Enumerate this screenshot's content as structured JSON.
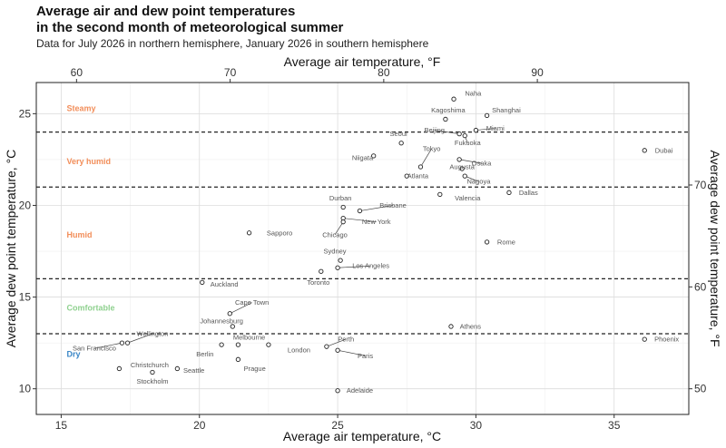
{
  "title_line1": "Average air and dew point temperatures",
  "title_line2": "in the second month of meteorological summer",
  "subtitle": "Data for July 2026 in northern hemisphere, January 2026 in southern hemisphere",
  "chart_data": {
    "type": "scatter",
    "xlabel_bottom": "Average air temperature, °C",
    "xlabel_top": "Average air temperature, °F",
    "ylabel_left": "Average dew point temperature, °C",
    "ylabel_right": "Average dew point temperature, °F",
    "xlim": [
      14.1,
      37.7
    ],
    "ylim": [
      8.6,
      26.7
    ],
    "x_ticks_c": [
      15,
      20,
      25,
      30,
      35
    ],
    "y_ticks_c": [
      10,
      15,
      20,
      25
    ],
    "x_ticks_f": [
      60,
      70,
      80,
      90
    ],
    "y_ticks_f": [
      50,
      60,
      70
    ],
    "thresholds": [
      13,
      16,
      21,
      24
    ],
    "bands": [
      {
        "label": "Steamy",
        "y": 25.3,
        "color": "#f28e5a"
      },
      {
        "label": "Very humid",
        "y": 22.4,
        "color": "#f28e5a"
      },
      {
        "label": "Humid",
        "y": 18.4,
        "color": "#f28e5a"
      },
      {
        "label": "Comfortable",
        "y": 14.4,
        "color": "#8fd18f"
      },
      {
        "label": "Dry",
        "y": 11.9,
        "color": "#3a86c6"
      }
    ],
    "points": [
      {
        "city": "Naha",
        "x": 29.2,
        "y": 25.8,
        "lx": 29.9,
        "ly": 26.1
      },
      {
        "city": "Shanghai",
        "x": 30.4,
        "y": 24.9,
        "lx": 31.1,
        "ly": 25.2
      },
      {
        "city": "Kagoshima",
        "x": 28.9,
        "y": 24.7,
        "lx": 29.0,
        "ly": 25.2
      },
      {
        "city": "Miami",
        "x": 30.0,
        "y": 24.1,
        "lx": 30.7,
        "ly": 24.2,
        "leader": true
      },
      {
        "city": "Beijing",
        "x": 29.4,
        "y": 23.9,
        "lx": 28.5,
        "ly": 24.1,
        "leader": true
      },
      {
        "city": "Seoul",
        "x": 27.3,
        "y": 23.4,
        "lx": 27.2,
        "ly": 23.9
      },
      {
        "city": "Fukuoka",
        "x": 29.6,
        "y": 23.8,
        "lx": 29.7,
        "ly": 23.4,
        "leader": true
      },
      {
        "city": "Dubai",
        "x": 36.1,
        "y": 23.0,
        "lx": 36.8,
        "ly": 23.0
      },
      {
        "city": "Tokyo",
        "x": 28.0,
        "y": 22.1,
        "lx": 28.4,
        "ly": 23.1,
        "leader": true
      },
      {
        "city": "Niigata",
        "x": 26.3,
        "y": 22.7,
        "lx": 25.9,
        "ly": 22.6
      },
      {
        "city": "Osaka",
        "x": 29.4,
        "y": 22.5,
        "lx": 30.2,
        "ly": 22.3,
        "leader": true
      },
      {
        "city": "Augusta",
        "x": 29.5,
        "y": 22.0,
        "lx": 29.5,
        "ly": 22.1
      },
      {
        "city": "Atlanta",
        "x": 27.5,
        "y": 21.6,
        "lx": 27.9,
        "ly": 21.6
      },
      {
        "city": "Nagoya",
        "x": 29.6,
        "y": 21.6,
        "lx": 30.1,
        "ly": 21.3,
        "leader": true
      },
      {
        "city": "Dallas",
        "x": 31.2,
        "y": 20.7,
        "lx": 31.9,
        "ly": 20.7
      },
      {
        "city": "Valencia",
        "x": 28.7,
        "y": 20.6,
        "lx": 29.7,
        "ly": 20.4
      },
      {
        "city": "Durban",
        "x": 25.2,
        "y": 19.9,
        "lx": 25.1,
        "ly": 20.4
      },
      {
        "city": "Brisbane",
        "x": 25.8,
        "y": 19.7,
        "lx": 27.0,
        "ly": 20.0,
        "leader": true
      },
      {
        "city": "New York",
        "x": 25.2,
        "y": 19.3,
        "lx": 26.4,
        "ly": 19.1,
        "leader": true
      },
      {
        "city": "Chicago",
        "x": 25.2,
        "y": 19.1,
        "lx": 24.9,
        "ly": 18.4,
        "leader": true
      },
      {
        "city": "Sapporo",
        "x": 21.8,
        "y": 18.5,
        "lx": 22.9,
        "ly": 18.5
      },
      {
        "city": "Rome",
        "x": 30.4,
        "y": 18.0,
        "lx": 31.1,
        "ly": 18.0
      },
      {
        "city": "Sydney",
        "x": 25.1,
        "y": 17.0,
        "lx": 24.9,
        "ly": 17.5
      },
      {
        "city": "Los Angeles",
        "x": 25.0,
        "y": 16.6,
        "lx": 26.2,
        "ly": 16.7,
        "leader": true
      },
      {
        "city": "Toronto",
        "x": 24.4,
        "y": 16.4,
        "lx": 24.3,
        "ly": 15.8
      },
      {
        "city": "Auckland",
        "x": 20.1,
        "y": 15.8,
        "lx": 20.9,
        "ly": 15.7
      },
      {
        "city": "Cape Town",
        "x": 21.1,
        "y": 14.1,
        "lx": 21.9,
        "ly": 14.7,
        "leader": true
      },
      {
        "city": "Johannesburg",
        "x": 21.2,
        "y": 13.4,
        "lx": 20.8,
        "ly": 13.7
      },
      {
        "city": "Athens",
        "x": 29.1,
        "y": 13.4,
        "lx": 29.8,
        "ly": 13.4
      },
      {
        "city": "Wellington",
        "x": 17.4,
        "y": 12.5,
        "lx": 18.3,
        "ly": 13.0,
        "leader": true
      },
      {
        "city": "San Francisco",
        "x": 17.2,
        "y": 12.5,
        "lx": 16.2,
        "ly": 12.2,
        "leader": true
      },
      {
        "city": "Melbourne",
        "x": 21.4,
        "y": 12.4,
        "lx": 21.8,
        "ly": 12.8
      },
      {
        "city": "Perth",
        "x": 24.6,
        "y": 12.3,
        "lx": 25.3,
        "ly": 12.7,
        "leader": true
      },
      {
        "city": "Berlin",
        "x": 20.8,
        "y": 12.4,
        "lx": 20.2,
        "ly": 11.9
      },
      {
        "city": "London",
        "x": 22.5,
        "y": 12.4,
        "lx": 23.6,
        "ly": 12.1
      },
      {
        "city": "Paris",
        "x": 25.0,
        "y": 12.1,
        "lx": 26.0,
        "ly": 11.8,
        "leader": true
      },
      {
        "city": "Prague",
        "x": 21.4,
        "y": 11.6,
        "lx": 22.0,
        "ly": 11.1
      },
      {
        "city": "Phoenix",
        "x": 36.1,
        "y": 12.7,
        "lx": 36.9,
        "ly": 12.7
      },
      {
        "city": "Christchurch",
        "x": 17.1,
        "y": 11.1,
        "lx": 18.2,
        "ly": 11.3
      },
      {
        "city": "Seattle",
        "x": 19.2,
        "y": 11.1,
        "lx": 19.8,
        "ly": 11.0
      },
      {
        "city": "Stockholm",
        "x": 18.3,
        "y": 10.9,
        "lx": 18.3,
        "ly": 10.4
      },
      {
        "city": "Adelaide",
        "x": 25.0,
        "y": 9.9,
        "lx": 25.8,
        "ly": 9.9
      }
    ]
  }
}
